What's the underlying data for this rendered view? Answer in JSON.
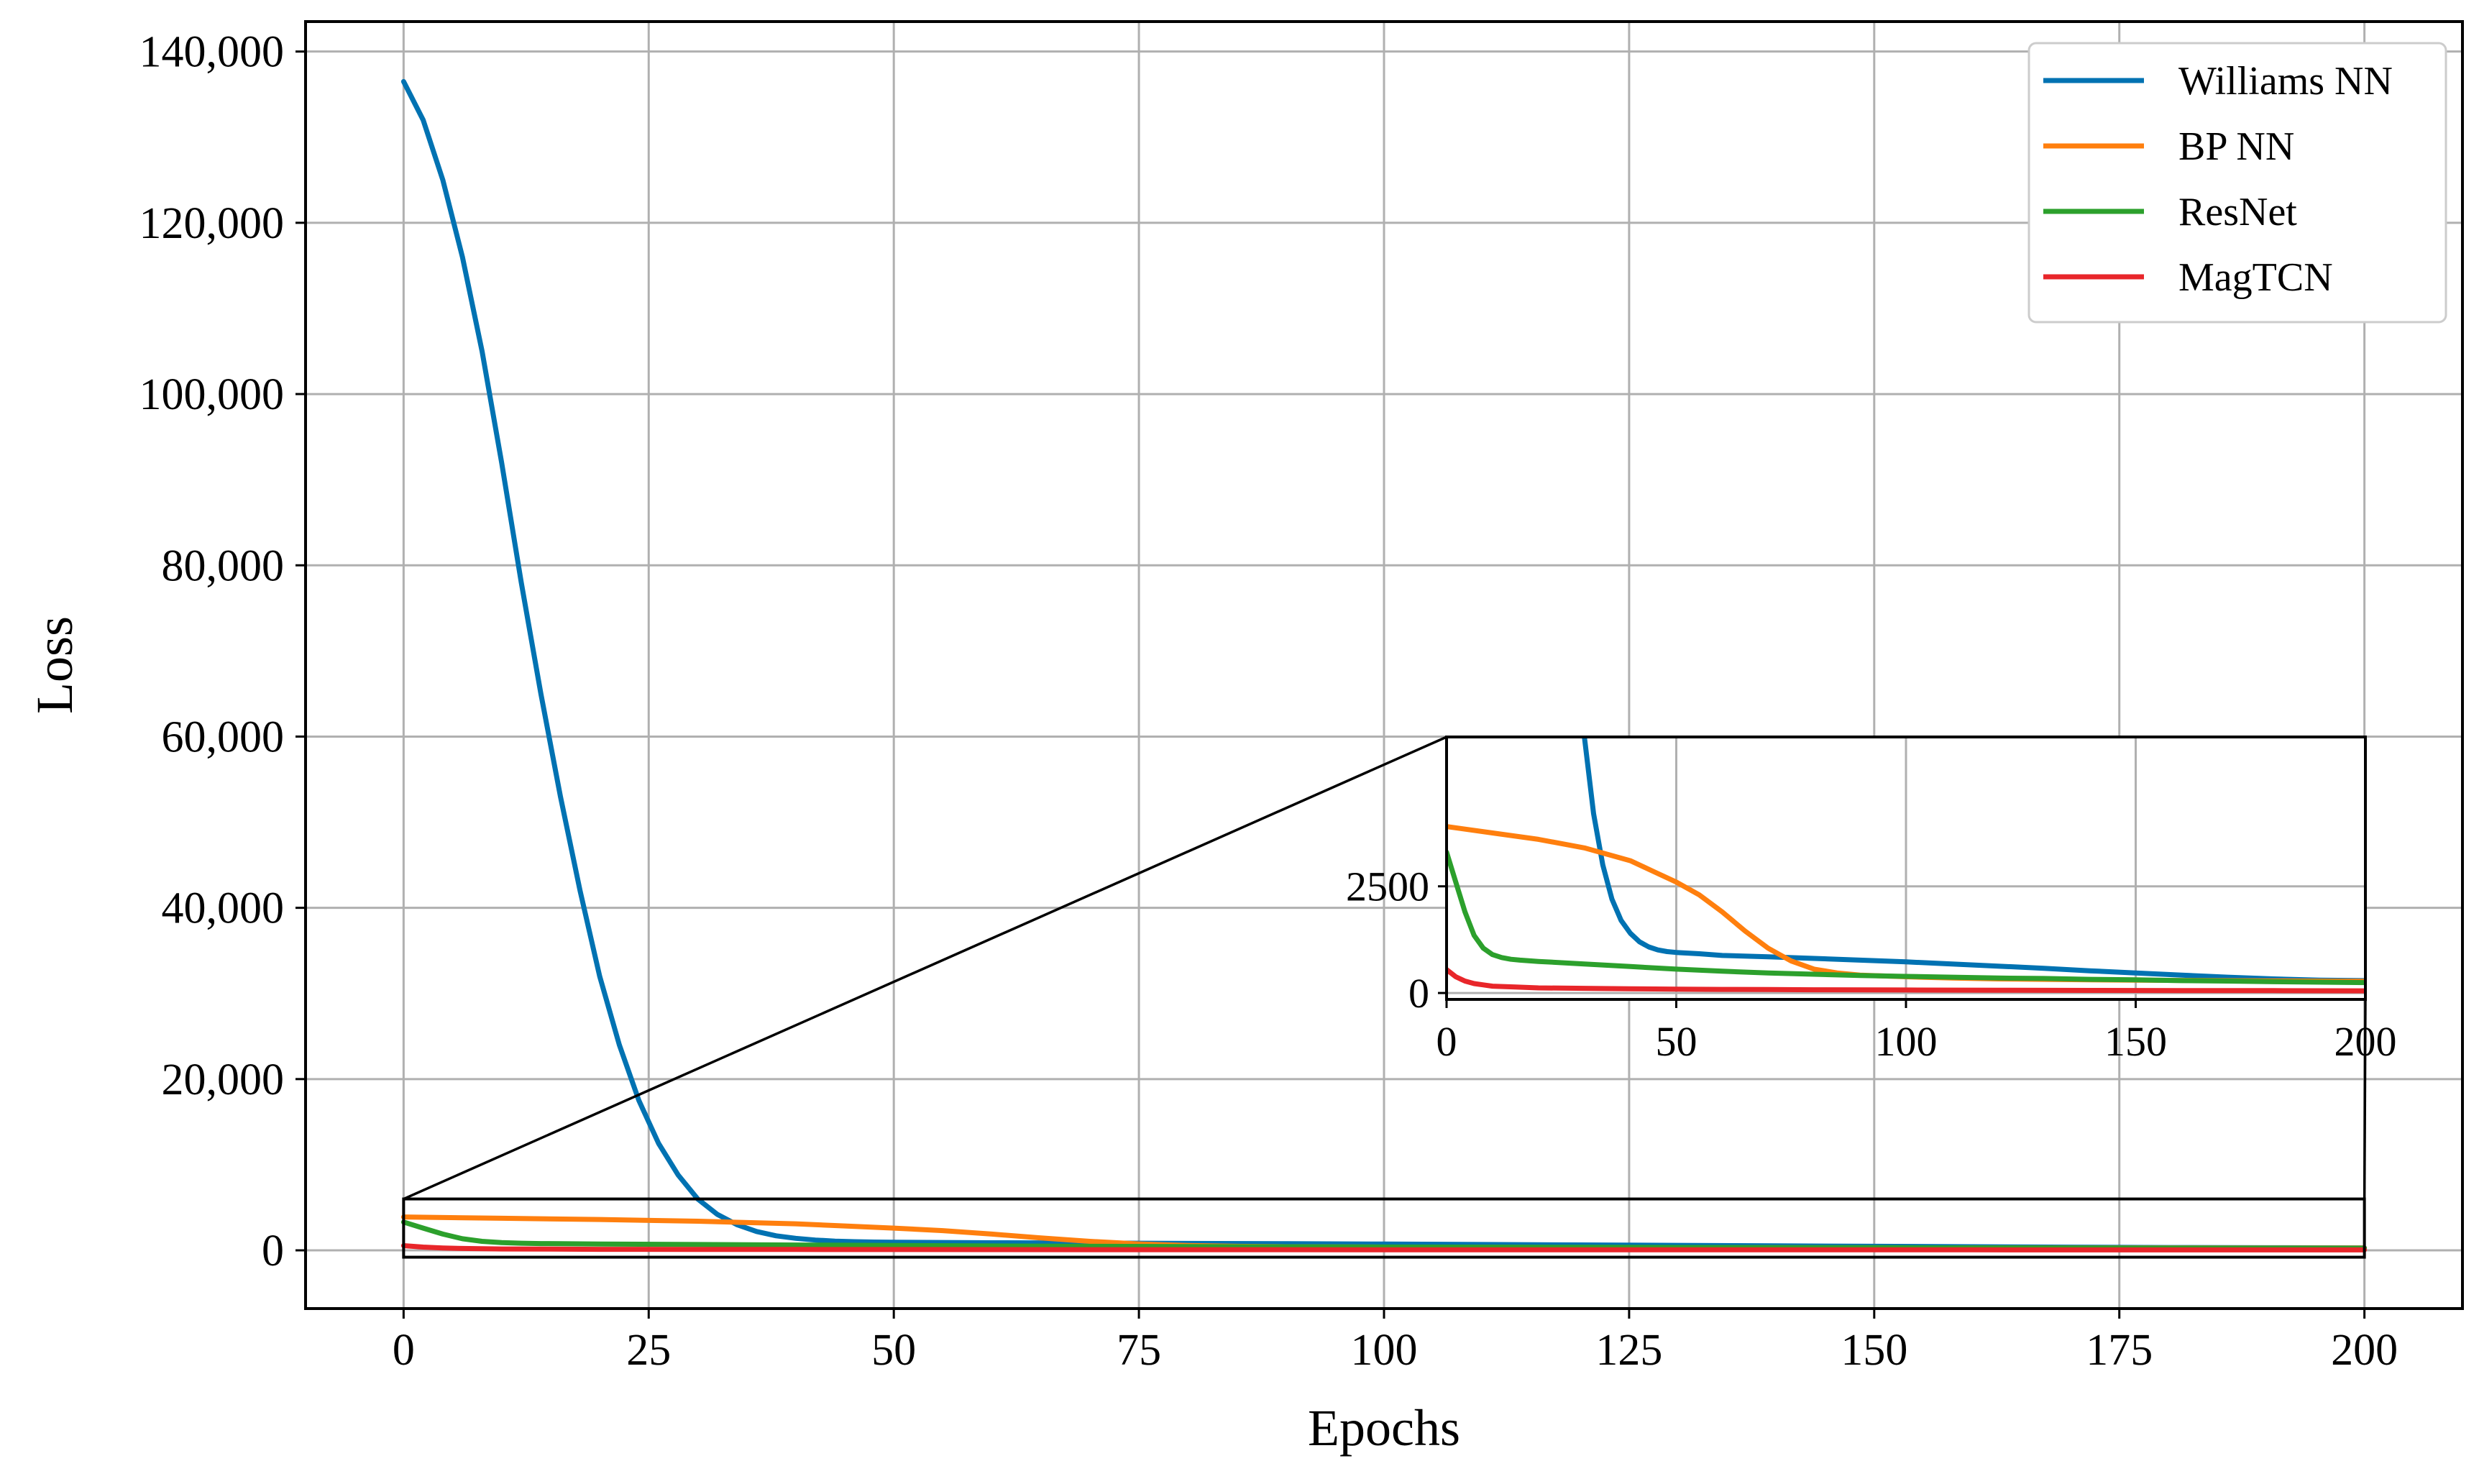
{
  "chart_data": {
    "type": "line",
    "xlabel": "Epochs",
    "ylabel": "Loss",
    "xlim": [
      -10,
      210
    ],
    "ylim": [
      -6800,
      143500
    ],
    "xticks": [
      0,
      25,
      50,
      75,
      100,
      125,
      150,
      175,
      200
    ],
    "yticks": [
      0,
      20000,
      40000,
      60000,
      80000,
      100000,
      120000,
      140000
    ],
    "xtick_labels": [
      "0",
      "25",
      "50",
      "75",
      "100",
      "125",
      "150",
      "175",
      "200"
    ],
    "ytick_labels": [
      "0",
      "20,000",
      "40,000",
      "60,000",
      "80,000",
      "100,000",
      "120,000",
      "140,000"
    ],
    "grid": true,
    "legend_position": "top-right",
    "series": [
      {
        "name": "Williams NN",
        "color": "#0072B2",
        "x": [
          0,
          2,
          4,
          6,
          8,
          10,
          12,
          14,
          16,
          18,
          20,
          22,
          24,
          26,
          28,
          30,
          32,
          34,
          36,
          38,
          40,
          42,
          44,
          46,
          48,
          50,
          55,
          60,
          70,
          80,
          90,
          100,
          110,
          120,
          130,
          140,
          150,
          160,
          170,
          180,
          190,
          200
        ],
        "y": [
          136500,
          132000,
          125000,
          116000,
          105000,
          92000,
          78000,
          65000,
          53000,
          42000,
          32000,
          24000,
          17500,
          12500,
          8800,
          6000,
          4200,
          3000,
          2200,
          1700,
          1400,
          1200,
          1080,
          1010,
          970,
          950,
          920,
          880,
          850,
          810,
          770,
          730,
          680,
          630,
          580,
          520,
          470,
          420,
          370,
          330,
          300,
          290
        ]
      },
      {
        "name": "BP NN",
        "color": "#FF7F0E",
        "x": [
          0,
          10,
          20,
          30,
          40,
          45,
          50,
          55,
          60,
          65,
          70,
          75,
          80,
          85,
          90,
          100,
          110,
          120,
          130,
          140,
          150,
          160,
          170,
          180,
          190,
          200
        ],
        "y": [
          3900,
          3750,
          3600,
          3400,
          3100,
          2850,
          2600,
          2300,
          1900,
          1450,
          1050,
          750,
          560,
          470,
          420,
          380,
          350,
          330,
          320,
          310,
          300,
          295,
          290,
          285,
          280,
          275
        ]
      },
      {
        "name": "ResNet",
        "color": "#2CA02C",
        "x": [
          0,
          2,
          4,
          6,
          8,
          10,
          12,
          14,
          16,
          20,
          30,
          40,
          50,
          60,
          70,
          80,
          90,
          100,
          110,
          120,
          130,
          140,
          150,
          160,
          170,
          180,
          190,
          200
        ],
        "y": [
          3300,
          2600,
          1900,
          1350,
          1050,
          900,
          830,
          790,
          770,
          740,
          680,
          620,
          560,
          510,
          470,
          440,
          410,
          390,
          370,
          350,
          340,
          320,
          310,
          290,
          280,
          265,
          255,
          245
        ]
      },
      {
        "name": "MagTCN",
        "color": "#E8262A",
        "x": [
          0,
          2,
          4,
          6,
          8,
          10,
          15,
          20,
          30,
          40,
          50,
          60,
          70,
          80,
          100,
          120,
          140,
          160,
          180,
          200
        ],
        "y": [
          550,
          380,
          280,
          220,
          190,
          160,
          140,
          120,
          110,
          100,
          90,
          85,
          80,
          75,
          70,
          65,
          60,
          58,
          55,
          50
        ]
      }
    ],
    "inset": {
      "xlim": [
        0,
        200
      ],
      "ylim": [
        -150,
        6000
      ],
      "xticks": [
        0,
        50,
        100,
        150,
        200
      ],
      "yticks": [
        0,
        2500
      ],
      "xtick_labels": [
        "0",
        "50",
        "100",
        "150",
        "200"
      ],
      "ytick_labels": [
        "0",
        "2500"
      ],
      "grid": true,
      "zoom_region": {
        "x": [
          0,
          200
        ],
        "y": [
          -800,
          6000
        ]
      }
    }
  }
}
